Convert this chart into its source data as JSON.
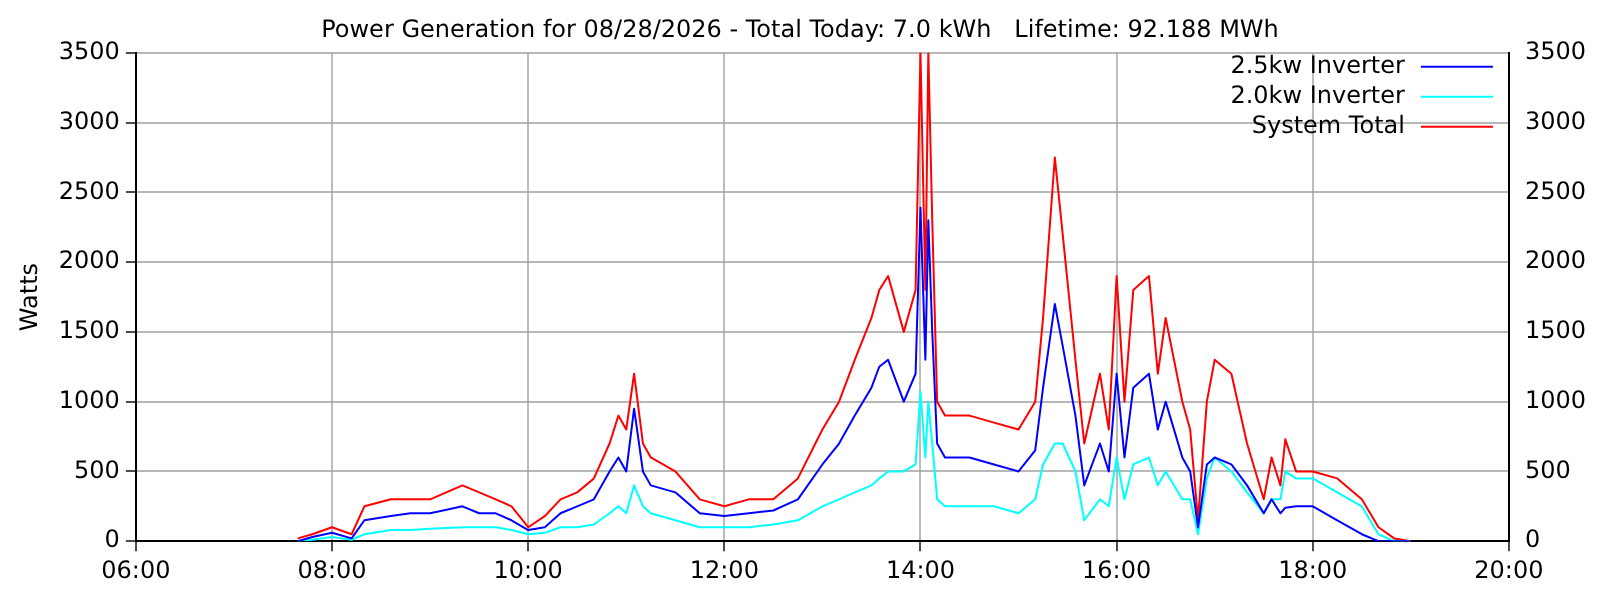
{
  "chart_data": {
    "type": "line",
    "title": "Power Generation for 08/28/2026 - Total Today: 7.0 kWh   Lifetime: 92.188 MWh",
    "ylabel": "Watts",
    "x": [
      7.65,
      7.8,
      8.0,
      8.2,
      8.33,
      8.6,
      8.8,
      9.0,
      9.33,
      9.5,
      9.67,
      9.83,
      10.0,
      10.17,
      10.33,
      10.5,
      10.67,
      10.83,
      10.92,
      11.0,
      11.08,
      11.17,
      11.25,
      11.5,
      11.75,
      12.0,
      12.25,
      12.5,
      12.75,
      13.0,
      13.17,
      13.33,
      13.5,
      13.58,
      13.67,
      13.83,
      13.95,
      14.0,
      14.05,
      14.08,
      14.12,
      14.17,
      14.25,
      14.5,
      14.75,
      15.0,
      15.17,
      15.25,
      15.37,
      15.45,
      15.58,
      15.67,
      15.83,
      15.92,
      16.0,
      16.08,
      16.17,
      16.33,
      16.42,
      16.5,
      16.67,
      16.75,
      16.83,
      16.92,
      17.0,
      17.17,
      17.33,
      17.5,
      17.58,
      17.67,
      17.72,
      17.83,
      18.0,
      18.25,
      18.5,
      18.67,
      18.83,
      19.0
    ],
    "series": [
      {
        "name": "2.5kw Inverter",
        "color": "#0000ff",
        "values": [
          0,
          30,
          60,
          20,
          150,
          180,
          200,
          200,
          250,
          200,
          200,
          150,
          80,
          100,
          200,
          250,
          300,
          500,
          600,
          500,
          950,
          500,
          400,
          350,
          200,
          180,
          200,
          220,
          300,
          550,
          700,
          900,
          1100,
          1250,
          1300,
          1000,
          1200,
          2390,
          1300,
          2300,
          1500,
          700,
          600,
          600,
          550,
          500,
          650,
          1100,
          1700,
          1400,
          900,
          400,
          700,
          500,
          1200,
          600,
          1100,
          1200,
          800,
          1000,
          600,
          500,
          100,
          550,
          600,
          550,
          400,
          200,
          300,
          200,
          240,
          250,
          250,
          150,
          50,
          0,
          0,
          0
        ]
      },
      {
        "name": "2.0kw Inverter",
        "color": "#00ffff",
        "values": [
          0,
          10,
          30,
          10,
          50,
          80,
          80,
          90,
          100,
          100,
          100,
          80,
          50,
          60,
          100,
          100,
          120,
          200,
          250,
          200,
          400,
          250,
          200,
          150,
          100,
          100,
          100,
          120,
          150,
          250,
          300,
          350,
          400,
          450,
          500,
          500,
          550,
          1070,
          600,
          1000,
          700,
          300,
          250,
          250,
          250,
          200,
          300,
          550,
          700,
          700,
          500,
          150,
          300,
          250,
          600,
          300,
          550,
          600,
          400,
          500,
          300,
          300,
          50,
          450,
          600,
          500,
          350,
          200,
          300,
          300,
          500,
          450,
          450,
          350,
          250,
          50,
          0,
          0
        ]
      },
      {
        "name": "System Total",
        "color": "#ff0000",
        "values": [
          20,
          50,
          100,
          50,
          250,
          300,
          300,
          300,
          400,
          350,
          300,
          250,
          100,
          180,
          300,
          350,
          450,
          700,
          900,
          800,
          1200,
          700,
          600,
          500,
          300,
          250,
          300,
          300,
          450,
          800,
          1000,
          1300,
          1600,
          1800,
          1900,
          1500,
          1800,
          3500,
          1800,
          3500,
          2300,
          1000,
          900,
          900,
          850,
          800,
          1000,
          1600,
          2750,
          2200,
          1300,
          700,
          1200,
          800,
          1900,
          1000,
          1800,
          1900,
          1200,
          1600,
          1000,
          800,
          150,
          1000,
          1300,
          1200,
          700,
          300,
          600,
          400,
          730,
          500,
          500,
          450,
          300,
          100,
          20,
          0
        ]
      }
    ],
    "xlim": [
      6,
      20
    ],
    "xticks": [
      {
        "value": 6,
        "label": "06:00"
      },
      {
        "value": 8,
        "label": "08:00"
      },
      {
        "value": 10,
        "label": "10:00"
      },
      {
        "value": 12,
        "label": "12:00"
      },
      {
        "value": 14,
        "label": "14:00"
      },
      {
        "value": 16,
        "label": "16:00"
      },
      {
        "value": 18,
        "label": "18:00"
      },
      {
        "value": 20,
        "label": "20:00"
      }
    ],
    "ylim": [
      0,
      3500
    ],
    "yticks": [
      0,
      500,
      1000,
      1500,
      2000,
      2500,
      3000,
      3500
    ],
    "y2lim": [
      0,
      3500
    ],
    "y2ticks": [
      0,
      500,
      1000,
      1500,
      2000,
      2500,
      3000,
      3500
    ],
    "grid": true,
    "legend": "top right",
    "marker": "none",
    "line_style": "solid"
  }
}
